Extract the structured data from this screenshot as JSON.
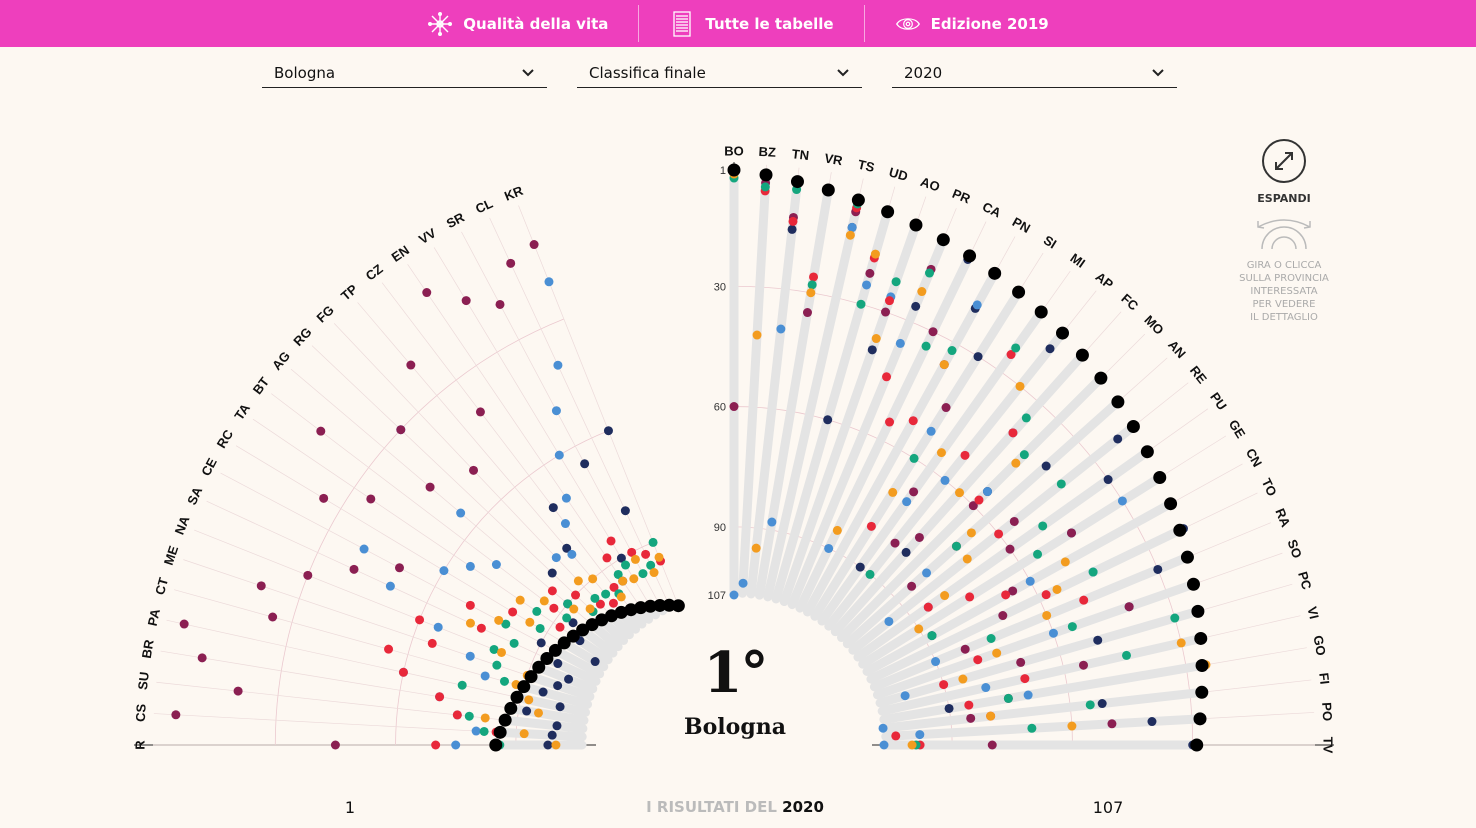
{
  "nav": {
    "items": [
      {
        "label": "Qualità della vita",
        "icon": "snowflake-icon"
      },
      {
        "label": "Tutte le tabelle",
        "icon": "table-icon"
      },
      {
        "label": "Edizione 2019",
        "icon": "eye-icon"
      }
    ]
  },
  "filters": {
    "province": "Bologna",
    "ranking": "Classifica finale",
    "year": "2020"
  },
  "selected": {
    "rank": "1°",
    "name": "Bologna"
  },
  "expand": {
    "label": "ESPANDI",
    "hint": [
      "GIRA O CLICCA",
      "SULLA PROVINCIA",
      "INTERESSATA",
      "PER VEDERE",
      "IL DETTAGLIO"
    ]
  },
  "footer": {
    "left": "1",
    "right": "107",
    "prefix": "I RISULTATI DEL",
    "year": "2020"
  },
  "colors": {
    "accent": "#ee3fbd",
    "navy": "#1f2d5e",
    "light_blue": "#4a8fd4",
    "purple": "#8b1f52",
    "red": "#e8283a",
    "green": "#14a67e",
    "orange": "#f39c1f",
    "black": "#000000",
    "track": "#e4e4e4"
  },
  "chart_data": {
    "type": "scatter",
    "r_ticks": [
      1,
      30,
      60,
      90,
      107
    ],
    "r_range": [
      1,
      107
    ],
    "right_provinces": [
      "BO",
      "BZ",
      "TN",
      "VR",
      "TS",
      "UD",
      "AO",
      "PR",
      "CA",
      "PN",
      "SI",
      "MI",
      "AP",
      "FC",
      "MO",
      "AN",
      "RE",
      "PU",
      "GE",
      "CN",
      "TO",
      "RA",
      "SO",
      "PC",
      "VI",
      "GO",
      "FI",
      "PO",
      "TV"
    ],
    "left_provinces": [
      "KR",
      "CL",
      "SR",
      "VV",
      "EN",
      "CZ",
      "TP",
      "FG",
      "RG",
      "AG",
      "BT",
      "TA",
      "RC",
      "CE",
      "SA",
      "NA",
      "ME",
      "CT",
      "PA",
      "BR",
      "SU",
      "CS",
      "R"
    ],
    "final_rank": {
      "BO": 1,
      "BZ": 2,
      "TN": 3,
      "VR": 4,
      "TS": 5,
      "UD": 6,
      "AO": 7,
      "PR": 8,
      "CA": 9,
      "PN": 10,
      "SI": 11,
      "MI": 12,
      "AP": 13,
      "FC": 14,
      "MO": 15,
      "AN": 16,
      "RE": 17,
      "PU": 18,
      "GE": 19,
      "CN": 20,
      "TO": 21,
      "RA": 22,
      "SO": 23,
      "PC": 24,
      "VI": 25,
      "GO": 26,
      "FI": 27,
      "PO": 28,
      "TV": 29,
      "KR": 107,
      "CL": 106,
      "SR": 105,
      "VV": 104,
      "EN": 103,
      "CZ": 102,
      "TP": 101,
      "FG": 100,
      "RG": 99,
      "AG": 98,
      "BT": 97,
      "TA": 96,
      "RC": 95,
      "CE": 94,
      "SA": 93,
      "NA": 92,
      "ME": 91,
      "CT": 90,
      "PA": 89,
      "BR": 88,
      "SU": 87,
      "CS": 86,
      "R": 85
    },
    "series": [
      {
        "color": "navy",
        "values": {
          "BO": 1,
          "TN": 15,
          "VR": 4,
          "TS": 12,
          "UD": 60,
          "AO": 40,
          "PR": 26,
          "CA": 10,
          "PN": 20,
          "SI": 30,
          "MI": 90,
          "AP": 18,
          "FC": 80,
          "MO": 55,
          "AN": 40,
          "RE": 22,
          "PU": 30,
          "GE": 45,
          "CN": 88,
          "TO": 20,
          "RA": 30,
          "SO": 40,
          "PC": 50,
          "VI": 25,
          "GO": 90,
          "FI": 52,
          "PO": 40,
          "TV": 30,
          "KR": 60,
          "CL": 80,
          "SR": 65,
          "VV": 90,
          "EN": 95,
          "CZ": 70,
          "TP": 80,
          "FG": 100,
          "RG": 82,
          "AG": 90,
          "BT": 94,
          "TA": 98,
          "RC": 104,
          "CE": 90,
          "SA": 96,
          "NA": 100,
          "ME": 98,
          "CT": 95,
          "PA": 100,
          "BR": 92,
          "SU": 100,
          "CS": 99,
          "R": 98
        }
      },
      {
        "color": "light_blue",
        "values": {
          "BO": 107,
          "BZ": 104,
          "TN": 40,
          "VR": 88,
          "TS": 12,
          "UD": 25,
          "AO": 26,
          "PR": 36,
          "CA": 90,
          "PN": 19,
          "SI": 52,
          "MI": 70,
          "AP": 60,
          "FC": 40,
          "MO": 55,
          "AN": 80,
          "RE": 95,
          "PU": 85,
          "GE": 30,
          "CN": 60,
          "TO": 45,
          "RA": 90,
          "SO": 60,
          "PC": 100,
          "VI": 80,
          "GO": 70,
          "FI": 107,
          "PO": 98,
          "TV": 107,
          "KR": 20,
          "CL": 40,
          "SR": 50,
          "VV": 60,
          "EN": 70,
          "CZ": 75,
          "TP": 82,
          "FG": 80,
          "RG": 30,
          "AG": 55,
          "BT": 70,
          "TA": 65,
          "RC": 60,
          "CE": 40,
          "SA": 50,
          "NA": 65,
          "ME": 75,
          "CT": 80,
          "PA": 60,
          "BR": 70,
          "SU": 75,
          "CS": 80,
          "R": 75
        }
      },
      {
        "color": "purple",
        "values": {
          "BO": 60,
          "BZ": 4,
          "TN": 12,
          "VR": 35,
          "TS": 8,
          "UD": 22,
          "AO": 30,
          "PR": 16,
          "CA": 30,
          "PN": 36,
          "SI": 45,
          "MI": 67,
          "AP": 80,
          "FC": 75,
          "MO": 60,
          "AN": 85,
          "RE": 55,
          "PU": 60,
          "GE": 45,
          "CN": 65,
          "TO": 70,
          "RA": 82,
          "SO": 40,
          "PC": 70,
          "VI": 55,
          "GO": 75,
          "FI": 85,
          "PO": 50,
          "TV": 80,
          "KR": 10,
          "CL": 12,
          "SR": 20,
          "VV": 15,
          "EN": 8,
          "CZ": 40,
          "TP": 20,
          "FG": 50,
          "RG": 30,
          "AG": 45,
          "BT": 15,
          "TA": 35,
          "RC": 25,
          "CE": 50,
          "SA": 40,
          "NA": 30,
          "ME": 20,
          "CT": 25,
          "PA": 4,
          "BR": 10,
          "SU": 20,
          "CS": 5,
          "R": 45
        }
      },
      {
        "color": "red",
        "values": {
          "BZ": 6,
          "TN": 13,
          "VR": 26,
          "TS": 7,
          "UD": 18,
          "AO": 27,
          "PR": 45,
          "CA": 55,
          "PN": 52,
          "SI": 80,
          "MI": 25,
          "AP": 52,
          "FC": 40,
          "MO": 58,
          "AN": 70,
          "RE": 60,
          "PU": 85,
          "GE": 75,
          "CN": 67,
          "TO": 58,
          "RA": 50,
          "SO": 80,
          "PC": 90,
          "VI": 70,
          "GO": 85,
          "FI": 80,
          "PO": 104,
          "TV": 98,
          "KR": 95,
          "CL": 92,
          "SR": 90,
          "VV": 85,
          "EN": 88,
          "CZ": 95,
          "TP": 98,
          "FG": 96,
          "RG": 90,
          "AG": 85,
          "BT": 88,
          "TA": 92,
          "RC": 80,
          "CE": 70,
          "SA": 75,
          "NA": 60,
          "ME": 65,
          "CT": 55,
          "PA": 60,
          "BR": 70,
          "SU": 75,
          "CS": 85,
          "R": 70
        }
      },
      {
        "color": "green",
        "values": {
          "BO": 3,
          "BZ": 5,
          "TN": 5,
          "VR": 28,
          "TS": 6,
          "UD": 30,
          "AO": 22,
          "PR": 17,
          "CA": 34,
          "PN": 32,
          "SI": 60,
          "MI": 23,
          "AP": 90,
          "FC": 35,
          "MO": 42,
          "AN": 70,
          "RE": 40,
          "PU": 50,
          "GE": 55,
          "CN": 88,
          "TO": 45,
          "RA": 75,
          "SO": 55,
          "PC": 30,
          "VI": 44,
          "GO": 75,
          "FI": 55,
          "PO": 70,
          "TV": 99,
          "KR": 90,
          "CL": 95,
          "SR": 96,
          "VV": 92,
          "EN": 93,
          "CZ": 97,
          "TP": 95,
          "FG": 94,
          "RG": 96,
          "AG": 90,
          "BT": 92,
          "TA": 85,
          "RC": 88,
          "CE": 80,
          "SA": 84,
          "NA": 80,
          "ME": 82,
          "CT": 85,
          "PA": 75,
          "BR": 88,
          "SU": 78,
          "CS": 82,
          "R": 86
        }
      },
      {
        "color": "orange",
        "values": {
          "BO": 2,
          "BZ": 42,
          "TN": 95,
          "VR": 30,
          "TS": 14,
          "UD": 17,
          "AO": 37,
          "PR": 22,
          "CA": 85,
          "PN": 36,
          "SI": 70,
          "MI": 55,
          "AP": 30,
          "FC": 60,
          "MO": 45,
          "AN": 65,
          "RE": 70,
          "PU": 80,
          "GE": 90,
          "CN": 50,
          "TO": 55,
          "RA": 60,
          "SO": 75,
          "PC": 85,
          "VI": 30,
          "GO": 25,
          "FI": 80,
          "PO": 60,
          "TV": 100,
          "KR": 94,
          "CL": 97,
          "SR": 92,
          "VV": 96,
          "EN": 95,
          "CZ": 98,
          "TP": 90,
          "FG": 88,
          "RG": 95,
          "AG": 92,
          "BT": 85,
          "TA": 80,
          "RC": 85,
          "CE": 78,
          "SA": 72,
          "NA": 82,
          "ME": 90,
          "CT": 88,
          "PA": 92,
          "BR": 95,
          "SU": 82,
          "CS": 92,
          "R": 100
        }
      }
    ]
  }
}
